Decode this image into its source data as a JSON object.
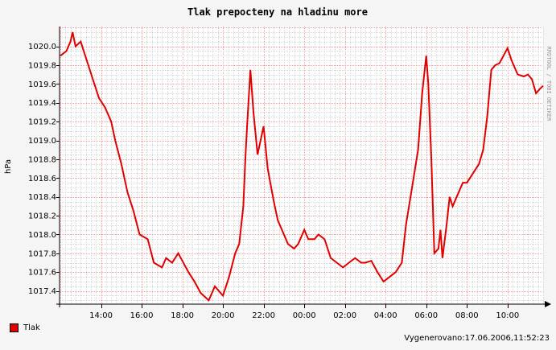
{
  "chart_data": {
    "type": "line",
    "title": "Tlak prepocteny na hladinu more",
    "ylabel": "hPa",
    "xlabel": "",
    "x_ticks": [
      "14:00",
      "16:00",
      "18:00",
      "20:00",
      "22:00",
      "00:00",
      "02:00",
      "04:00",
      "06:00",
      "08:00",
      "10:00"
    ],
    "y_ticks": [
      "1017.4",
      "1017.6",
      "1017.8",
      "1018.0",
      "1018.2",
      "1018.4",
      "1018.6",
      "1018.8",
      "1019.0",
      "1019.2",
      "1019.4",
      "1019.6",
      "1019.8",
      "1020.0"
    ],
    "x_range_hours": [
      12.0,
      35.75
    ],
    "ylim": [
      1017.26,
      1020.21
    ],
    "grid": true,
    "series": [
      {
        "name": "Tlak",
        "color": "#e00000",
        "x": [
          12.0,
          12.3,
          12.5,
          12.6,
          12.75,
          13.0,
          13.3,
          13.6,
          13.9,
          14.2,
          14.5,
          14.7,
          15.0,
          15.3,
          15.6,
          15.9,
          16.3,
          16.6,
          17.0,
          17.2,
          17.5,
          17.8,
          18.0,
          18.3,
          18.6,
          18.9,
          19.3,
          19.6,
          20.0,
          20.3,
          20.6,
          20.8,
          21.0,
          21.1,
          21.2,
          21.35,
          21.5,
          21.7,
          22.0,
          22.2,
          22.5,
          22.7,
          23.0,
          23.2,
          23.5,
          23.7,
          24.0,
          24.2,
          24.5,
          24.7,
          25.0,
          25.3,
          25.6,
          25.9,
          26.2,
          26.5,
          26.8,
          27.0,
          27.3,
          27.6,
          27.9,
          28.2,
          28.5,
          28.8,
          29.0,
          29.3,
          29.6,
          29.8,
          30.0,
          30.1,
          30.25,
          30.4,
          30.6,
          30.7,
          30.8,
          31.0,
          31.15,
          31.3,
          31.5,
          31.8,
          32.0,
          32.3,
          32.6,
          32.8,
          33.0,
          33.2,
          33.4,
          33.6,
          33.8,
          34.0,
          34.2,
          34.5,
          34.8,
          35.0,
          35.2,
          35.4,
          35.6,
          35.75
        ],
        "values": [
          1019.9,
          1019.95,
          1020.05,
          1020.15,
          1020.0,
          1020.05,
          1019.85,
          1019.65,
          1019.45,
          1019.35,
          1019.2,
          1019.0,
          1018.75,
          1018.45,
          1018.25,
          1018.0,
          1017.95,
          1017.7,
          1017.65,
          1017.75,
          1017.7,
          1017.8,
          1017.72,
          1017.6,
          1017.5,
          1017.38,
          1017.3,
          1017.45,
          1017.35,
          1017.55,
          1017.8,
          1017.9,
          1018.3,
          1018.8,
          1019.2,
          1019.75,
          1019.3,
          1018.85,
          1019.15,
          1018.7,
          1018.35,
          1018.15,
          1018.0,
          1017.9,
          1017.85,
          1017.9,
          1018.05,
          1017.95,
          1017.95,
          1018.0,
          1017.95,
          1017.75,
          1017.7,
          1017.65,
          1017.7,
          1017.75,
          1017.7,
          1017.7,
          1017.72,
          1017.6,
          1017.5,
          1017.55,
          1017.6,
          1017.7,
          1018.1,
          1018.5,
          1018.9,
          1019.5,
          1019.9,
          1019.6,
          1018.8,
          1017.8,
          1017.85,
          1018.05,
          1017.75,
          1018.1,
          1018.4,
          1018.3,
          1018.4,
          1018.55,
          1018.55,
          1018.65,
          1018.75,
          1018.9,
          1019.25,
          1019.75,
          1019.8,
          1019.82,
          1019.9,
          1019.98,
          1019.85,
          1019.7,
          1019.68,
          1019.7,
          1019.65,
          1019.5,
          1019.55,
          1019.58
        ]
      }
    ]
  },
  "side_label": "RRDTOOL / TOBI OETIKER",
  "legend": {
    "label": "Tlak",
    "color": "#e00000"
  },
  "footer": "Vygenerovano:17.06.2006,11:52:23"
}
